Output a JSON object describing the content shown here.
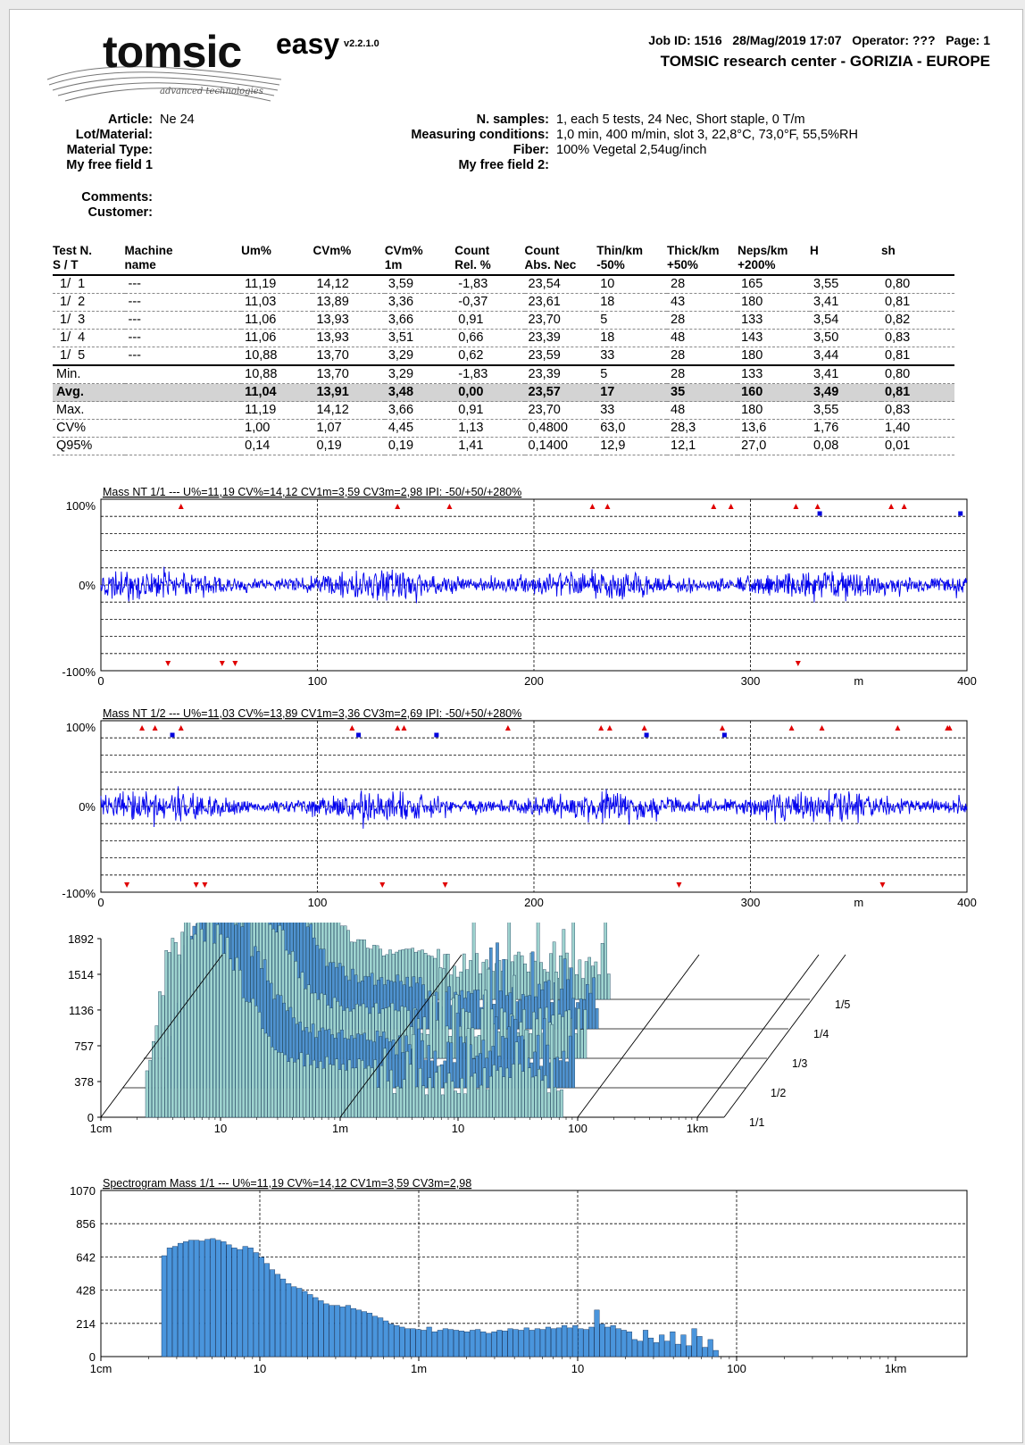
{
  "header": {
    "logo_text": "tomsic",
    "logo_sub": "advanced technologies",
    "product": "easy",
    "version": "v2.2.1.0",
    "job_line": "Job ID: 1516   28/Mag/2019 17:07   Operator: ???   Page: 1",
    "center": "TOMSIC research center - GORIZIA - EUROPE"
  },
  "meta": {
    "left": [
      {
        "label": "Article:",
        "value": "Ne 24"
      },
      {
        "label": "Lot/Material:",
        "value": ""
      },
      {
        "label": "Material Type:",
        "value": ""
      },
      {
        "label": "My free field 1",
        "value": ""
      }
    ],
    "right": [
      {
        "label": "N. samples:",
        "value": "1, each 5 tests, 24 Nec, Short staple, 0 T/m"
      },
      {
        "label": "Measuring conditions:",
        "value": "1,0 min, 400 m/min, slot 3, 22,8°C, 73,0°F, 55,5%RH"
      },
      {
        "label": "Fiber:",
        "value": "100% Vegetal 2,54ug/inch"
      },
      {
        "label": "My free field 2:",
        "value": ""
      }
    ],
    "comments_label": "Comments:",
    "customer_label": "Customer:"
  },
  "table": {
    "headers": [
      [
        "Test N.",
        "S / T"
      ],
      [
        "Machine",
        "name"
      ],
      [
        "Um%",
        ""
      ],
      [
        "CVm%",
        ""
      ],
      [
        "CVm%",
        "1m"
      ],
      [
        "Count",
        "Rel. %"
      ],
      [
        "Count",
        "Abs. Nec"
      ],
      [
        "Thin/km",
        "-50%"
      ],
      [
        "Thick/km",
        "+50%"
      ],
      [
        "Neps/km",
        "+200%"
      ],
      [
        "H",
        ""
      ],
      [
        "sh",
        ""
      ]
    ],
    "tests": [
      [
        " 1/  1",
        "---",
        "11,19",
        "14,12",
        "3,59",
        "-1,83",
        "23,54",
        "10",
        "28",
        "165",
        "3,55",
        "0,80"
      ],
      [
        " 1/  2",
        "---",
        "11,03",
        "13,89",
        "3,36",
        "-0,37",
        "23,61",
        "18",
        "43",
        "180",
        "3,41",
        "0,81"
      ],
      [
        " 1/  3",
        "---",
        "11,06",
        "13,93",
        "3,66",
        "0,91",
        "23,70",
        "5",
        "28",
        "133",
        "3,54",
        "0,82"
      ],
      [
        " 1/  4",
        "---",
        "11,06",
        "13,93",
        "3,51",
        "0,66",
        "23,39",
        "18",
        "48",
        "143",
        "3,50",
        "0,83"
      ],
      [
        " 1/  5",
        "---",
        "10,88",
        "13,70",
        "3,29",
        "0,62",
        "23,59",
        "33",
        "28",
        "180",
        "3,44",
        "0,81"
      ]
    ],
    "stats": [
      [
        "Min.",
        "",
        "10,88",
        "13,70",
        "3,29",
        "-1,83",
        "23,39",
        "5",
        "28",
        "133",
        "3,41",
        "0,80"
      ],
      [
        "Avg.",
        "",
        "11,04",
        "13,91",
        "3,48",
        "0,00",
        "23,57",
        "17",
        "35",
        "160",
        "3,49",
        "0,81"
      ],
      [
        "Max.",
        "",
        "11,19",
        "14,12",
        "3,66",
        "0,91",
        "23,70",
        "33",
        "48",
        "180",
        "3,55",
        "0,83"
      ],
      [
        "CV%",
        "",
        "1,00",
        "1,07",
        "4,45",
        "1,13",
        "0,4800",
        "63,0",
        "28,3",
        "13,6",
        "1,76",
        "1,40"
      ],
      [
        "Q95%",
        "",
        "0,14",
        "0,19",
        "0,19",
        "1,41",
        "0,1400",
        "12,9",
        "12,1",
        "27,0",
        "0,08",
        "0,01"
      ]
    ]
  },
  "chart_data": [
    {
      "type": "line",
      "title": "Mass NT 1/1   ---  U%=11,19  CV%=14,12  CV1m=3,59  CV3m=2,98  IPI: -50/+50/+280%",
      "ytick_labels": [
        "100%",
        "0%",
        "-100%"
      ],
      "xticks": [
        0,
        100,
        200,
        300,
        400
      ],
      "xunit": "m",
      "xlim": [
        0,
        400
      ],
      "thick_markers_m": [
        37,
        137,
        161,
        227,
        234,
        283,
        291,
        321,
        331,
        365,
        371
      ],
      "thin_markers_m": [
        31,
        56,
        62,
        322
      ],
      "neps_markers_m": [
        332,
        397
      ],
      "color": "#0000ee"
    },
    {
      "type": "line",
      "title": "Mass NT 1/2   ---   U%=11,03   CV%=13,89   CV1m=3,36   CV3m=2,69   IPI: -50/+50/+280%",
      "ytick_labels": [
        "100%",
        "0%",
        "-100%"
      ],
      "xticks": [
        0,
        100,
        200,
        300,
        400
      ],
      "xunit": "m",
      "xlim": [
        0,
        400
      ],
      "thick_markers_m": [
        19,
        25,
        37,
        116,
        137,
        140,
        188,
        231,
        235,
        251,
        287,
        319,
        333,
        368,
        391,
        392
      ],
      "thin_markers_m": [
        12,
        44,
        48,
        130,
        159,
        267,
        361
      ],
      "neps_markers_m": [
        33,
        119,
        155,
        252,
        288
      ],
      "color": "#0000ee"
    },
    {
      "type": "bar",
      "subtype": "3d-stacked-spectrograms",
      "ytick_labels": [
        "1892",
        "1514",
        "1136",
        "757",
        "378",
        "0"
      ],
      "ylim": [
        0,
        1892
      ],
      "xtick_labels": [
        "1cm",
        "10",
        "1m",
        "10",
        "100",
        "1km"
      ],
      "series": [
        {
          "name": "1/1"
        },
        {
          "name": "1/2"
        },
        {
          "name": "1/3"
        },
        {
          "name": "1/4"
        },
        {
          "name": "1/5"
        }
      ],
      "colors": [
        "#9ed3cf",
        "#4f92cf"
      ]
    },
    {
      "type": "bar",
      "title": "Spectrogram Mass 1/1   ---   U%=11,19   CV%=14,12   CV1m=3,59   CV3m=2,98",
      "ytick_labels": [
        "1070",
        "856",
        "642",
        "428",
        "214",
        "0"
      ],
      "ylim": [
        0,
        1070
      ],
      "xtick_labels": [
        "1cm",
        "10",
        "1m",
        "10",
        "100",
        "1km"
      ],
      "values": [
        650,
        700,
        710,
        730,
        740,
        750,
        750,
        745,
        755,
        760,
        750,
        740,
        720,
        700,
        690,
        710,
        700,
        670,
        640,
        600,
        560,
        530,
        500,
        470,
        450,
        440,
        420,
        400,
        380,
        360,
        340,
        330,
        330,
        320,
        330,
        310,
        300,
        290,
        280,
        260,
        250,
        230,
        210,
        200,
        190,
        180,
        180,
        175,
        170,
        190,
        160,
        170,
        180,
        175,
        170,
        165,
        160,
        170,
        175,
        160,
        150,
        160,
        170,
        165,
        180,
        175,
        170,
        185,
        170,
        180,
        175,
        190,
        180,
        185,
        200,
        185,
        200,
        180,
        175,
        190,
        300,
        210,
        190,
        200,
        180,
        170,
        160,
        110,
        100,
        170,
        120,
        90,
        140,
        100,
        160,
        80,
        140,
        70,
        180,
        130,
        60,
        110,
        40
      ],
      "color": "#4a95dc"
    }
  ]
}
